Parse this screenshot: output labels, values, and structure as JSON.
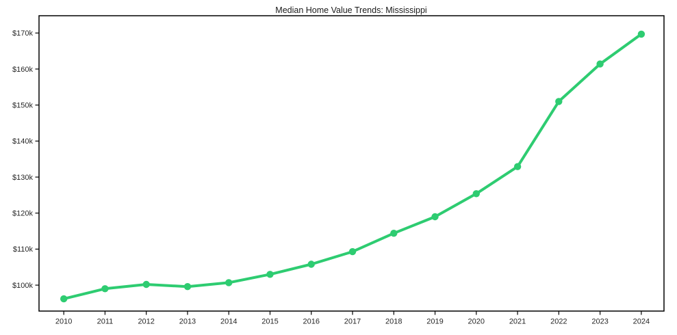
{
  "chart_data": {
    "type": "line",
    "title": "Median Home Value Trends: Mississippi",
    "xlabel": "",
    "ylabel": "",
    "x": [
      2010,
      2011,
      2012,
      2013,
      2014,
      2015,
      2016,
      2017,
      2018,
      2019,
      2020,
      2021,
      2022,
      2023,
      2024
    ],
    "y": [
      96200,
      99000,
      100200,
      99600,
      100700,
      103000,
      105800,
      109300,
      114400,
      119000,
      125400,
      132900,
      151000,
      161400,
      169700
    ],
    "x_tick_labels": [
      "2010",
      "2011",
      "2012",
      "2013",
      "2014",
      "2015",
      "2016",
      "2017",
      "2018",
      "2019",
      "2020",
      "2021",
      "2022",
      "2023",
      "2024"
    ],
    "y_ticks": [
      100000,
      110000,
      120000,
      130000,
      140000,
      150000,
      160000,
      170000
    ],
    "y_tick_labels": [
      "$100k",
      "$110k",
      "$120k",
      "$130k",
      "$140k",
      "$150k",
      "$160k",
      "$170k"
    ],
    "xlim": [
      2009.4,
      2024.55
    ],
    "ylim": [
      92800,
      174800
    ],
    "grid": false,
    "legend": "none",
    "line_color": "#2ecc71",
    "marker": "circle",
    "axis_color": "#000000"
  }
}
